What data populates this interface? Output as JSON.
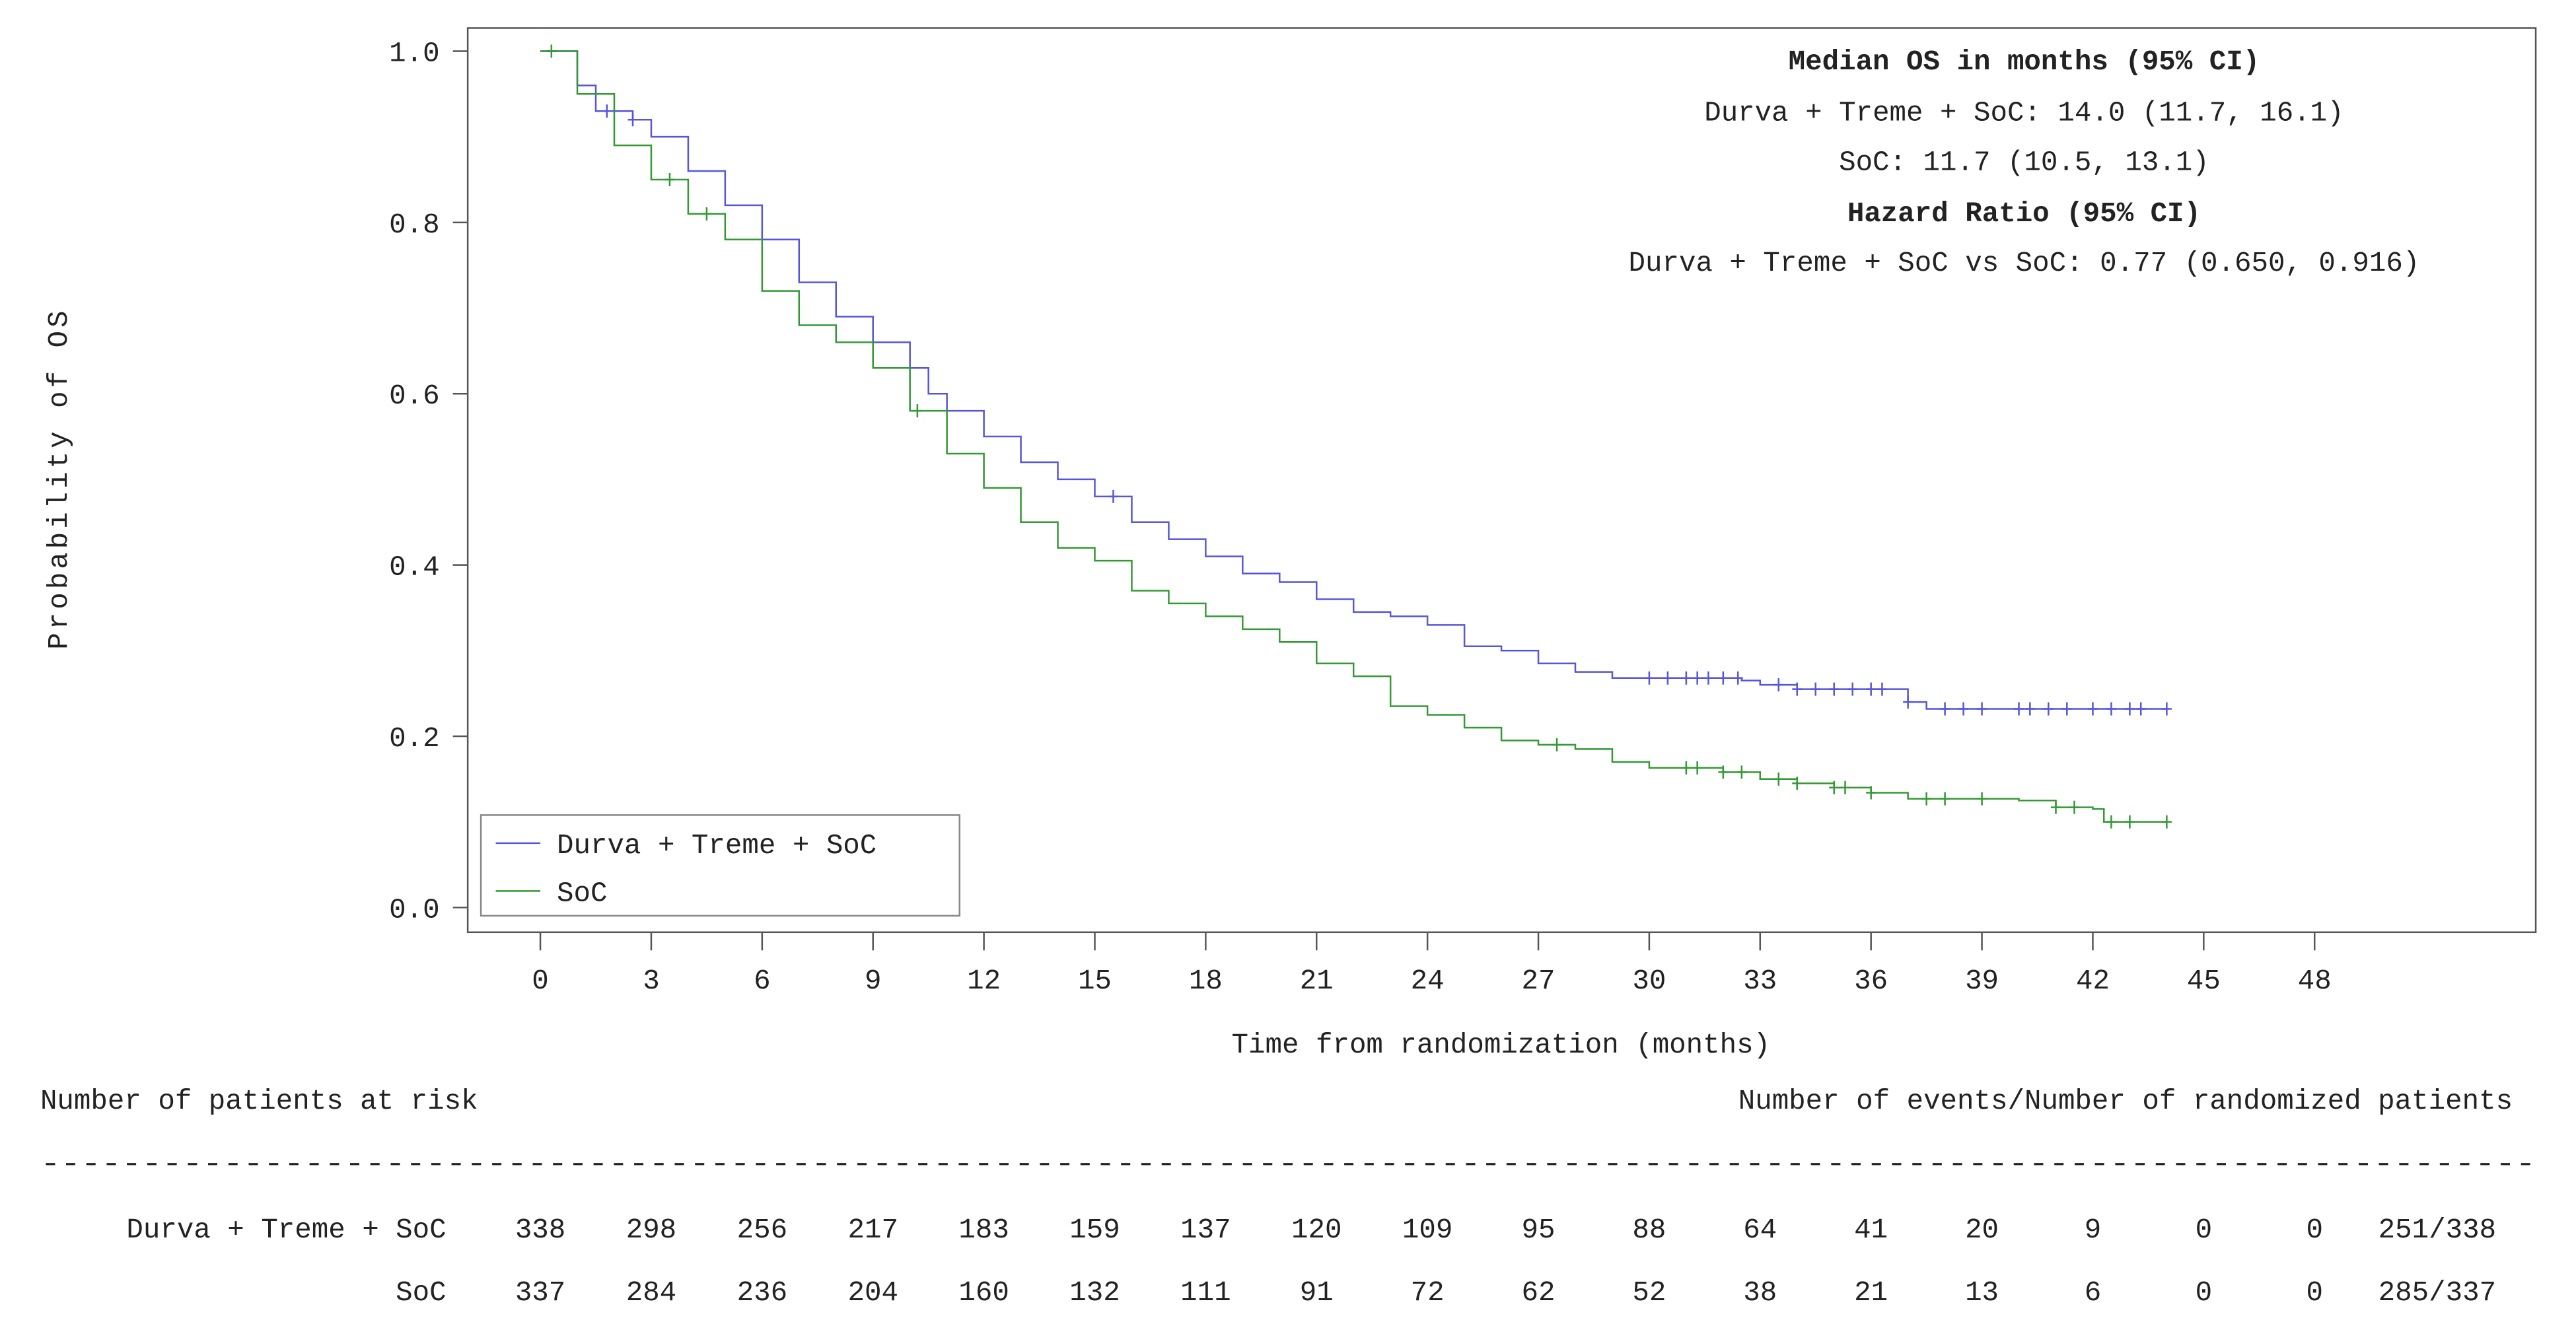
{
  "chart_data": {
    "type": "line",
    "subtype": "kaplan-meier",
    "xlabel": "Time from randomization (months)",
    "ylabel": "Probability of OS",
    "xlim": [
      0,
      48
    ],
    "ylim": [
      0,
      1.0
    ],
    "xticks": [
      0,
      3,
      6,
      9,
      12,
      15,
      18,
      21,
      24,
      27,
      30,
      33,
      36,
      39,
      42,
      45,
      48
    ],
    "yticks": [
      "0.0",
      "0.2",
      "0.4",
      "0.6",
      "0.8",
      "1.0"
    ],
    "grid": false,
    "legend_position": "bottom-left",
    "annotations": {
      "median_title": "Median OS in months (95% CI)",
      "median_arm1": "Durva + Treme + SoC: 14.0 (11.7, 16.1)",
      "median_arm2": "SoC: 11.7 (10.5, 13.1)",
      "hr_title": "Hazard Ratio (95% CI)",
      "hr_value": "Durva + Treme + SoC vs SoC: 0.77 (0.650, 0.916)"
    },
    "series": [
      {
        "name": "Durva + Treme + SoC",
        "color": "#5555dd",
        "steps": [
          [
            0,
            1
          ],
          [
            1,
            0.96
          ],
          [
            1.5,
            0.93
          ],
          [
            2.5,
            0.92
          ],
          [
            3,
            0.9
          ],
          [
            4,
            0.86
          ],
          [
            5,
            0.82
          ],
          [
            6,
            0.78
          ],
          [
            7,
            0.73
          ],
          [
            8,
            0.69
          ],
          [
            9,
            0.66
          ],
          [
            10,
            0.63
          ],
          [
            10.5,
            0.6
          ],
          [
            11,
            0.58
          ],
          [
            12,
            0.55
          ],
          [
            13,
            0.52
          ],
          [
            14,
            0.5
          ],
          [
            15,
            0.48
          ],
          [
            16,
            0.45
          ],
          [
            17,
            0.43
          ],
          [
            18,
            0.41
          ],
          [
            19,
            0.39
          ],
          [
            20,
            0.38
          ],
          [
            21,
            0.36
          ],
          [
            22,
            0.345
          ],
          [
            23,
            0.34
          ],
          [
            24,
            0.33
          ],
          [
            25,
            0.305
          ],
          [
            26,
            0.3
          ],
          [
            27,
            0.285
          ],
          [
            28,
            0.275
          ],
          [
            29,
            0.268
          ],
          [
            32.5,
            0.265
          ],
          [
            33,
            0.26
          ],
          [
            34,
            0.255
          ],
          [
            36.7,
            0.255
          ],
          [
            37,
            0.24
          ],
          [
            37.5,
            0.232
          ],
          [
            44,
            0.232
          ]
        ],
        "censored": [
          1.8,
          2.5,
          15.5,
          30,
          30.5,
          31,
          31.3,
          31.6,
          32,
          32.4,
          33.5,
          34,
          34.5,
          35,
          35.5,
          36,
          36.3,
          37,
          38,
          38.5,
          39,
          40,
          40.3,
          40.8,
          41.3,
          42,
          42.5,
          43,
          43.3,
          44
        ]
      },
      {
        "name": "SoC",
        "color": "#339933",
        "steps": [
          [
            0,
            1
          ],
          [
            1,
            0.95
          ],
          [
            2,
            0.89
          ],
          [
            3,
            0.85
          ],
          [
            4,
            0.81
          ],
          [
            5,
            0.78
          ],
          [
            6,
            0.72
          ],
          [
            7,
            0.68
          ],
          [
            8,
            0.66
          ],
          [
            9,
            0.63
          ],
          [
            10,
            0.58
          ],
          [
            11,
            0.53
          ],
          [
            12,
            0.49
          ],
          [
            13,
            0.45
          ],
          [
            14,
            0.42
          ],
          [
            15,
            0.405
          ],
          [
            16,
            0.37
          ],
          [
            17,
            0.355
          ],
          [
            18,
            0.34
          ],
          [
            19,
            0.325
          ],
          [
            20,
            0.31
          ],
          [
            21,
            0.285
          ],
          [
            22,
            0.27
          ],
          [
            23,
            0.235
          ],
          [
            24,
            0.225
          ],
          [
            25,
            0.21
          ],
          [
            26,
            0.195
          ],
          [
            27,
            0.19
          ],
          [
            28,
            0.185
          ],
          [
            29,
            0.17
          ],
          [
            30,
            0.163
          ],
          [
            32,
            0.158
          ],
          [
            33,
            0.15
          ],
          [
            34,
            0.145
          ],
          [
            35,
            0.14
          ],
          [
            36,
            0.134
          ],
          [
            37,
            0.127
          ],
          [
            40,
            0.125
          ],
          [
            41,
            0.117
          ],
          [
            42,
            0.115
          ],
          [
            42.3,
            0.1
          ],
          [
            44,
            0.1
          ]
        ],
        "censored": [
          0.3,
          3.5,
          4.5,
          10.2,
          27.5,
          31,
          31.3,
          32,
          32.5,
          33.5,
          34,
          35,
          35.3,
          36,
          37.5,
          38,
          39,
          41,
          41.5,
          42.5,
          43,
          44
        ]
      }
    ],
    "risk_table": {
      "title": "Number of patients at risk",
      "events_title": "Number of events/Number of randomized patients",
      "separator": "---------------------------------------------------------------------------------------------------------------------------",
      "rows": [
        {
          "label": "Durva + Treme + SoC",
          "values": [
            "338",
            "298",
            "256",
            "217",
            "183",
            "159",
            "137",
            "120",
            "109",
            "95",
            "88",
            "64",
            "41",
            "20",
            "9",
            "0",
            "0"
          ],
          "events": "251/338"
        },
        {
          "label": "SoC",
          "values": [
            "337",
            "284",
            "236",
            "204",
            "160",
            "132",
            "111",
            "91",
            "72",
            "62",
            "52",
            "38",
            "21",
            "13",
            "6",
            "0",
            "0"
          ],
          "events": "285/337"
        }
      ]
    }
  }
}
